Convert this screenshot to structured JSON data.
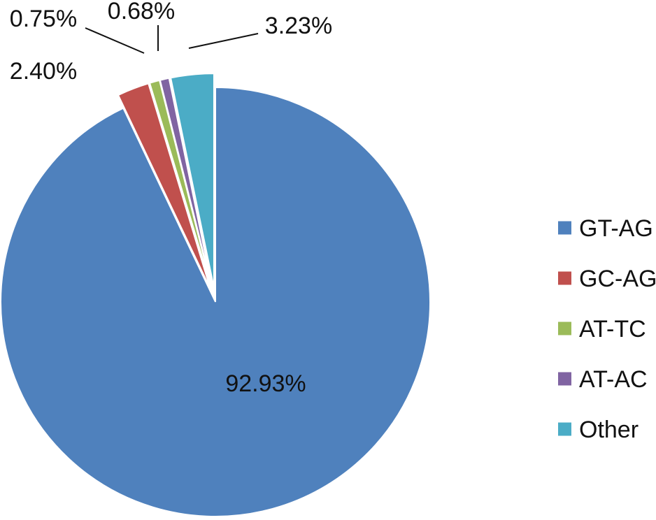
{
  "chart_data": {
    "type": "pie",
    "categories": [
      "GT-AG",
      "GC-AG",
      "AT-TC",
      "AT-AC",
      "Other"
    ],
    "values": [
      92.93,
      2.4,
      0.75,
      0.68,
      3.23
    ],
    "data_labels": [
      "92.93%",
      "2.40%",
      "0.75%",
      "0.68%",
      "3.23%"
    ],
    "colors": [
      "#4F81BD",
      "#C0504D",
      "#9BBB59",
      "#8064A2",
      "#4BACC6"
    ],
    "exploded": [
      false,
      true,
      true,
      true,
      true
    ],
    "legend_position": "right",
    "title": ""
  }
}
